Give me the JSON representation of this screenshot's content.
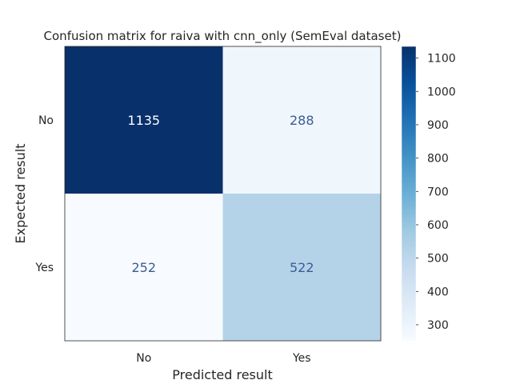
{
  "chart_data": {
    "type": "heatmap",
    "title": "Confusion matrix for raiva with cnn_only (SemEval dataset)",
    "xlabel": "Predicted result",
    "ylabel": "Expected result",
    "x_categories": [
      "No",
      "Yes"
    ],
    "y_categories": [
      "No",
      "Yes"
    ],
    "values": [
      [
        1135,
        288
      ],
      [
        252,
        522
      ]
    ],
    "colormap": "Blues",
    "colorbar": {
      "range": [
        252,
        1135
      ],
      "ticks": [
        300,
        400,
        500,
        600,
        700,
        800,
        900,
        1000,
        1100
      ]
    },
    "cell_text_colors": {
      "dark_bg": "#ffffff",
      "light_bg": "#3a5d93"
    },
    "grid": false,
    "legend": "none"
  }
}
